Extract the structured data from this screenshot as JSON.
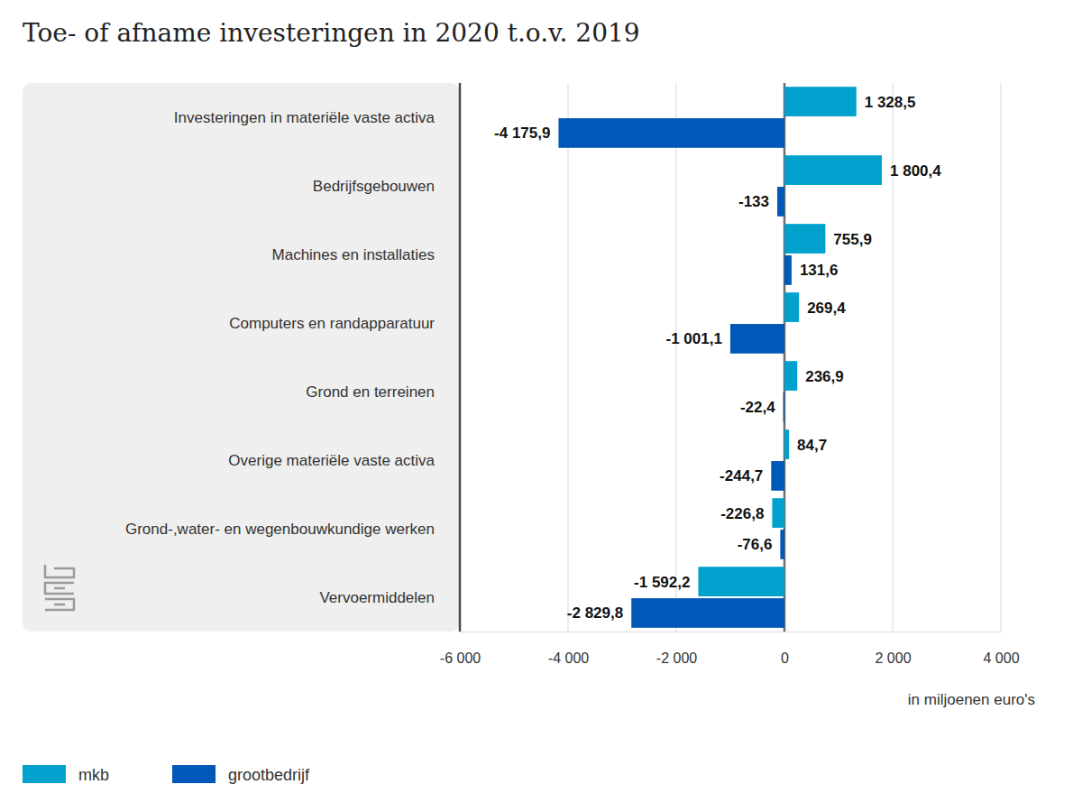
{
  "chart_data": {
    "type": "bar",
    "orientation": "horizontal",
    "title": "Toe- of afname investeringen in 2020 t.o.v. 2019",
    "xlabel": "in miljoenen euro's",
    "categories": [
      "Investeringen in materiële vaste activa",
      "Bedrijfsgebouwen",
      "Machines en installaties",
      "Computers en randapparatuur",
      "Grond en terreinen",
      "Overige materiële vaste activa",
      "Grond-,water- en wegenbouwkundige werken",
      "Vervoermiddelen"
    ],
    "series": [
      {
        "name": "mkb",
        "color": "#00a1cd",
        "values": [
          1328.5,
          1800.4,
          755.9,
          269.4,
          236.9,
          84.7,
          -226.8,
          -1592.2
        ],
        "value_labels": [
          "1 328,5",
          "1 800,4",
          "755,9",
          "269,4",
          "236,9",
          "84,7",
          "-226,8",
          "-1 592,2"
        ]
      },
      {
        "name": "grootbedrijf",
        "color": "#0058b8",
        "values": [
          -4175.9,
          -133,
          131.6,
          -1001.1,
          -22.4,
          -244.7,
          -76.6,
          -2829.8
        ],
        "value_labels": [
          "-4 175,9",
          "-133",
          "131,6",
          "-1 001,1",
          "-22,4",
          "-244,7",
          "-76,6",
          "-2 829,8"
        ]
      }
    ],
    "xlim": [
      -6000,
      4000
    ],
    "xticks": [
      {
        "value": -6000,
        "label": "-6 000"
      },
      {
        "value": -4000,
        "label": "-4 000"
      },
      {
        "value": -2000,
        "label": "-2 000"
      },
      0,
      {
        "value": 2000,
        "label": "2 000"
      },
      {
        "value": 4000,
        "label": "4 000"
      }
    ],
    "grid": true,
    "data_labels": true,
    "legend": "bottom-left"
  }
}
